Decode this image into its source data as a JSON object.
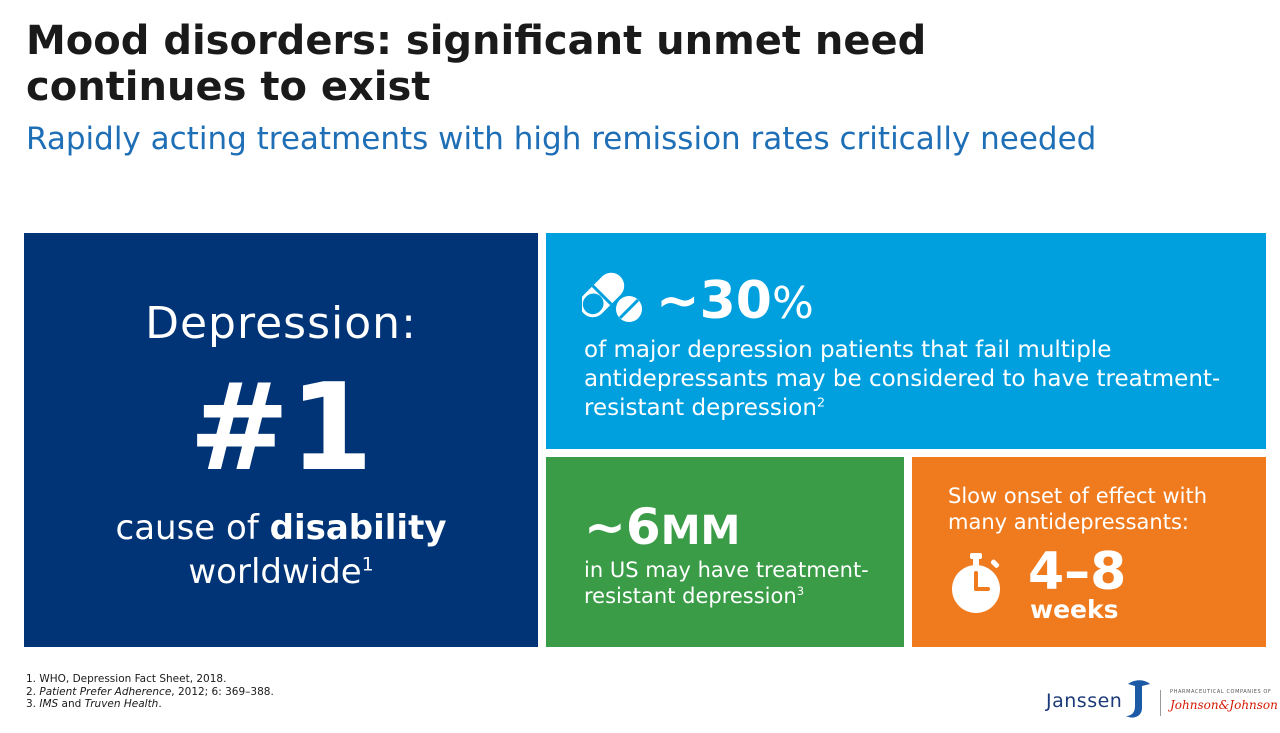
{
  "title": {
    "line1": "Mood disorders: significant unmet need",
    "line2": "continues to exist"
  },
  "subtitle": "Rapidly acting treatments with high remission rates critically needed",
  "depression_panel": {
    "heading": "Depression:",
    "big": "#1",
    "line1_prefix": "cause of ",
    "line1_bold": "disability",
    "line2": "worldwide",
    "ref": "1",
    "color": "#003477"
  },
  "resistant_panel": {
    "icon": "pills-icon",
    "stat": "~30",
    "stat_unit": "%",
    "text": "of major depression patients that fail multiple antidepressants may be considered to have treatment-resistant depression",
    "ref": "2",
    "color": "#00a0df"
  },
  "us_panel": {
    "stat": "~6",
    "stat_unit": "MM",
    "text": "in US may have treatment-resistant depression",
    "ref": "3",
    "color": "#3a9c47"
  },
  "onset_panel": {
    "text": "Slow onset of effect with many antidepressants:",
    "icon": "stopwatch-icon",
    "stat": "4–8",
    "unit": "weeks",
    "color": "#f07b1f"
  },
  "footnotes": {
    "n1": "1. WHO, Depression Fact Sheet, 2018.",
    "n2_prefix": "2. ",
    "n2_italic": "Patient Prefer Adherence",
    "n2_rest": ", 2012; 6: 369–388.",
    "n3_prefix": "3. ",
    "n3_italic1": "IMS",
    "n3_mid": " and ",
    "n3_italic2": "Truven Health",
    "n3_end": "."
  },
  "logos": {
    "janssen": "Janssen",
    "pharma_line": "PHARMACEUTICAL COMPANIES OF",
    "jj": "Johnson&Johnson"
  }
}
